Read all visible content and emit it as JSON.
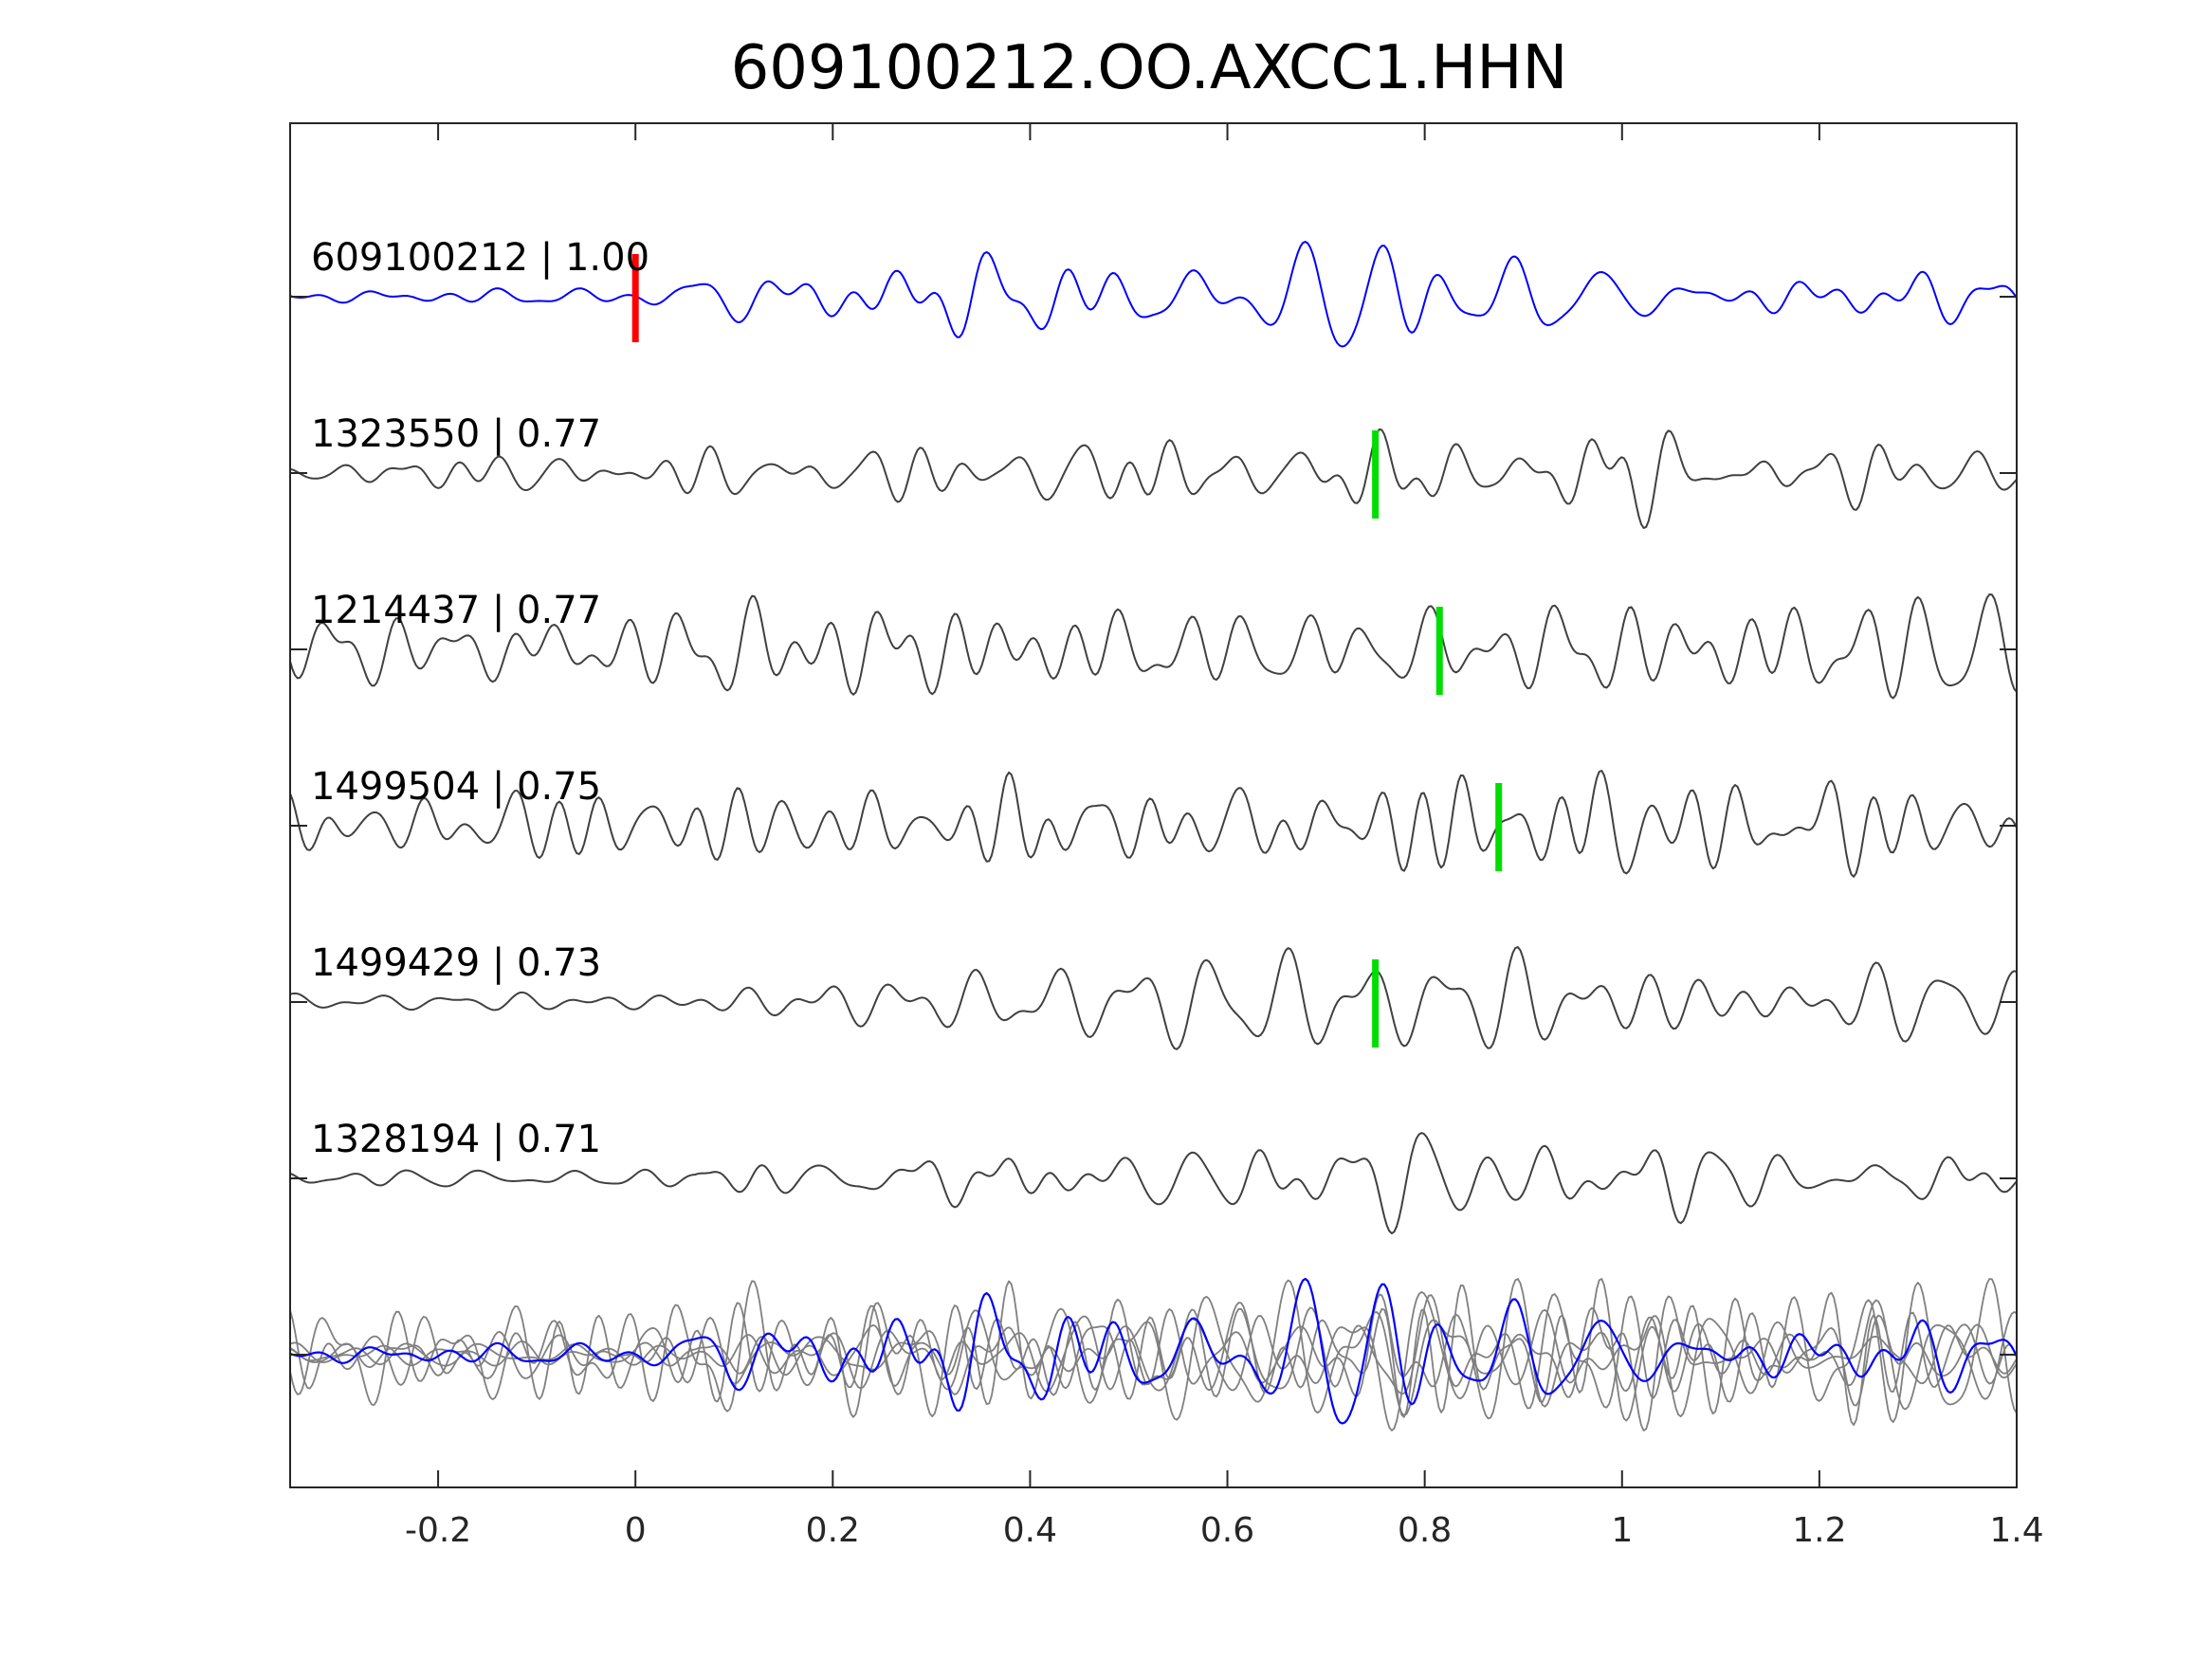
{
  "chart_data": {
    "type": "line",
    "title": "609100212.OO.AXCC1.HHN",
    "xlabel": "",
    "ylabel": "",
    "xlim": [
      -0.35,
      1.4
    ],
    "x_ticks": [
      "-0.2",
      "0",
      "0.2",
      "0.4",
      "0.6",
      "0.8",
      "1",
      "1.2",
      "1.4"
    ],
    "x_tick_values": [
      -0.2,
      0,
      0.2,
      0.4,
      0.6,
      0.8,
      1.0,
      1.2,
      1.4
    ],
    "grid": false,
    "colors": {
      "template": "#0000ff",
      "match": "#404040",
      "overlay_match": "#808080",
      "template_pick": "#ff0000",
      "match_pick": "#00dd00"
    },
    "series": [
      {
        "name": "609100212 | 1.00",
        "event_id": "609100212",
        "correlation": "1.00",
        "pick_time": 0.0,
        "role": "template",
        "waveform_seed": 11,
        "envelope": [
          [
            -0.35,
            0.1
          ],
          [
            0.0,
            0.15
          ],
          [
            0.05,
            0.45
          ],
          [
            0.25,
            0.65
          ],
          [
            0.55,
            0.85
          ],
          [
            0.8,
            1.0
          ],
          [
            0.95,
            0.75
          ],
          [
            1.05,
            0.5
          ],
          [
            1.4,
            0.45
          ]
        ]
      },
      {
        "name": "1323550 | 0.77",
        "event_id": "1323550",
        "correlation": "0.77",
        "pick_time": 0.75,
        "role": "match",
        "waveform_seed": 23,
        "envelope": [
          [
            -0.35,
            0.3
          ],
          [
            0.2,
            0.45
          ],
          [
            0.5,
            0.65
          ],
          [
            0.75,
            0.75
          ],
          [
            1.0,
            1.0
          ],
          [
            1.1,
            0.6
          ],
          [
            1.4,
            0.5
          ]
        ]
      },
      {
        "name": "1214437 | 0.77",
        "event_id": "1214437",
        "correlation": "0.77",
        "pick_time": 0.815,
        "role": "match",
        "waveform_seed": 37,
        "envelope": [
          [
            -0.35,
            0.8
          ],
          [
            0.4,
            0.85
          ],
          [
            0.8,
            0.85
          ],
          [
            1.0,
            0.9
          ],
          [
            1.4,
            0.8
          ]
        ]
      },
      {
        "name": "1499504 | 0.75",
        "event_id": "1499504",
        "correlation": "0.75",
        "pick_time": 0.875,
        "role": "match",
        "waveform_seed": 41,
        "envelope": [
          [
            -0.35,
            0.45
          ],
          [
            0.2,
            0.55
          ],
          [
            0.6,
            0.75
          ],
          [
            0.95,
            1.0
          ],
          [
            1.1,
            0.7
          ],
          [
            1.4,
            0.6
          ]
        ]
      },
      {
        "name": "1499429 | 0.73",
        "event_id": "1499429",
        "correlation": "0.73",
        "pick_time": 0.75,
        "role": "match",
        "waveform_seed": 53,
        "envelope": [
          [
            -0.35,
            0.15
          ],
          [
            0.05,
            0.25
          ],
          [
            0.2,
            0.55
          ],
          [
            0.55,
            0.75
          ],
          [
            0.75,
            0.85
          ],
          [
            1.0,
            1.0
          ],
          [
            1.1,
            0.7
          ],
          [
            1.4,
            0.55
          ]
        ]
      },
      {
        "name": "1328194 | 0.71",
        "event_id": "1328194",
        "correlation": "0.71",
        "pick_time": null,
        "role": "match",
        "waveform_seed": 67,
        "envelope": [
          [
            -0.35,
            0.15
          ],
          [
            0.06,
            0.2
          ],
          [
            0.08,
            0.65
          ],
          [
            0.5,
            0.85
          ],
          [
            0.7,
            0.85
          ],
          [
            0.95,
            1.0
          ],
          [
            1.1,
            0.7
          ],
          [
            1.4,
            0.6
          ]
        ]
      }
    ],
    "overlay": {
      "description_free": true,
      "includes_template": true
    }
  }
}
